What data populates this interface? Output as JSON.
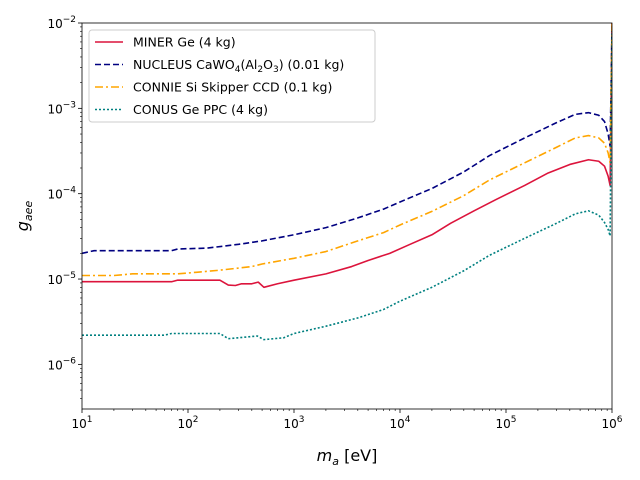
{
  "chart_data": {
    "type": "line",
    "title": "",
    "xlabel_main": "m",
    "xlabel_sub": "a",
    "xlabel_unit": " [eV]",
    "ylabel_main": "g",
    "ylabel_sub": "aee",
    "xscale": "log",
    "yscale": "log",
    "xlim": [
      10,
      1000000
    ],
    "ylim": [
      3e-07,
      0.01
    ],
    "grid": false,
    "legend_position": "upper-left",
    "x_ticks": [
      {
        "value": 10,
        "base": "10",
        "exp": "1"
      },
      {
        "value": 100,
        "base": "10",
        "exp": "2"
      },
      {
        "value": 1000,
        "base": "10",
        "exp": "3"
      },
      {
        "value": 10000,
        "base": "10",
        "exp": "4"
      },
      {
        "value": 100000,
        "base": "10",
        "exp": "5"
      },
      {
        "value": 1000000,
        "base": "10",
        "exp": "6"
      }
    ],
    "y_ticks": [
      {
        "value": 1e-06,
        "base": "10",
        "exp": "−6"
      },
      {
        "value": 1e-05,
        "base": "10",
        "exp": "−5"
      },
      {
        "value": 0.0001,
        "base": "10",
        "exp": "−4"
      },
      {
        "value": 0.001,
        "base": "10",
        "exp": "−3"
      },
      {
        "value": 0.01,
        "base": "10",
        "exp": "−2"
      }
    ],
    "series": [
      {
        "name": "MINER Ge (4 kg)",
        "legend_parts": [
          {
            "t": "MINER Ge (4 kg)"
          }
        ],
        "color": "#dc143c",
        "dash": "solid",
        "points": [
          [
            10,
            9.3e-06
          ],
          [
            70,
            9.3e-06
          ],
          [
            80,
            9.7e-06
          ],
          [
            200,
            9.7e-06
          ],
          [
            240,
            8.5e-06
          ],
          [
            280,
            8.4e-06
          ],
          [
            320,
            8.8e-06
          ],
          [
            400,
            8.8e-06
          ],
          [
            460,
            9.2e-06
          ],
          [
            520,
            8e-06
          ],
          [
            700,
            8.8e-06
          ],
          [
            1000,
            9.7e-06
          ],
          [
            2000,
            1.15e-05
          ],
          [
            3500,
            1.4e-05
          ],
          [
            5000,
            1.65e-05
          ],
          [
            8000,
            2e-05
          ],
          [
            12000,
            2.5e-05
          ],
          [
            20000,
            3.3e-05
          ],
          [
            30000,
            4.5e-05
          ],
          [
            50000,
            6.3e-05
          ],
          [
            80000,
            8.5e-05
          ],
          [
            150000,
            0.000125
          ],
          [
            250000,
            0.000175
          ],
          [
            400000,
            0.00022
          ],
          [
            600000,
            0.00025
          ],
          [
            750000,
            0.00024
          ],
          [
            850000,
            0.00021
          ],
          [
            920000,
            0.00016
          ],
          [
            960000,
            0.000125
          ],
          [
            990000,
            0.003
          ],
          [
            1000000,
            0.01
          ]
        ]
      },
      {
        "name": "NUCLEUS CaWO4(Al2O3) (0.01 kg)",
        "legend_parts": [
          {
            "t": "NUCLEUS CaWO"
          },
          {
            "t": "4",
            "sub": true
          },
          {
            "t": "(Al"
          },
          {
            "t": "2",
            "sub": true
          },
          {
            "t": "O"
          },
          {
            "t": "3",
            "sub": true
          },
          {
            "t": ") (0.01 kg)"
          }
        ],
        "color": "#000080",
        "dash": "6 3",
        "points": [
          [
            10,
            2e-05
          ],
          [
            13,
            2.15e-05
          ],
          [
            70,
            2.15e-05
          ],
          [
            80,
            2.25e-05
          ],
          [
            150,
            2.3e-05
          ],
          [
            300,
            2.55e-05
          ],
          [
            500,
            2.8e-05
          ],
          [
            1000,
            3.3e-05
          ],
          [
            2000,
            4e-05
          ],
          [
            4000,
            5.2e-05
          ],
          [
            7000,
            6.6e-05
          ],
          [
            10000,
            8e-05
          ],
          [
            20000,
            0.000115
          ],
          [
            40000,
            0.00018
          ],
          [
            70000,
            0.00028
          ],
          [
            150000,
            0.00045
          ],
          [
            300000,
            0.00068
          ],
          [
            450000,
            0.00085
          ],
          [
            600000,
            0.00089
          ],
          [
            750000,
            0.00083
          ],
          [
            850000,
            0.0007
          ],
          [
            920000,
            0.0005
          ],
          [
            960000,
            0.00036
          ],
          [
            990000,
            0.004
          ],
          [
            1000000,
            0.01
          ]
        ]
      },
      {
        "name": "CONNIE Si Skipper CCD (0.1 kg)",
        "legend_parts": [
          {
            "t": "CONNIE Si Skipper CCD (0.1 kg)"
          }
        ],
        "color": "#ffa500",
        "dash": "8 3 2 3",
        "points": [
          [
            10,
            1.1e-05
          ],
          [
            20,
            1.1e-05
          ],
          [
            30,
            1.15e-05
          ],
          [
            80,
            1.15e-05
          ],
          [
            120,
            1.2e-05
          ],
          [
            200,
            1.27e-05
          ],
          [
            400,
            1.4e-05
          ],
          [
            500,
            1.5e-05
          ],
          [
            1000,
            1.75e-05
          ],
          [
            2000,
            2.1e-05
          ],
          [
            4000,
            2.8e-05
          ],
          [
            7000,
            3.5e-05
          ],
          [
            10000,
            4.3e-05
          ],
          [
            20000,
            6.2e-05
          ],
          [
            40000,
            9.5e-05
          ],
          [
            70000,
            0.000145
          ],
          [
            150000,
            0.00023
          ],
          [
            300000,
            0.00035
          ],
          [
            450000,
            0.00045
          ],
          [
            600000,
            0.00048
          ],
          [
            750000,
            0.00045
          ],
          [
            850000,
            0.00039
          ],
          [
            920000,
            0.0003
          ],
          [
            960000,
            0.00023
          ],
          [
            990000,
            0.0035
          ],
          [
            1000000,
            0.01
          ]
        ]
      },
      {
        "name": "CONUS Ge PPC (4 kg)",
        "legend_parts": [
          {
            "t": "CONUS Ge PPC (4 kg)"
          }
        ],
        "color": "#008080",
        "dash": "2 2",
        "points": [
          [
            10,
            2.2e-06
          ],
          [
            60,
            2.2e-06
          ],
          [
            70,
            2.3e-06
          ],
          [
            200,
            2.3e-06
          ],
          [
            240,
            2e-06
          ],
          [
            300,
            2.05e-06
          ],
          [
            450,
            2.15e-06
          ],
          [
            520,
            1.95e-06
          ],
          [
            800,
            2.05e-06
          ],
          [
            1000,
            2.3e-06
          ],
          [
            2000,
            2.8e-06
          ],
          [
            4000,
            3.5e-06
          ],
          [
            7000,
            4.4e-06
          ],
          [
            10000,
            5.5e-06
          ],
          [
            20000,
            8e-06
          ],
          [
            40000,
            1.25e-05
          ],
          [
            70000,
            1.9e-05
          ],
          [
            150000,
            3e-05
          ],
          [
            300000,
            4.5e-05
          ],
          [
            450000,
            5.8e-05
          ],
          [
            600000,
            6.3e-05
          ],
          [
            750000,
            5.6e-05
          ],
          [
            850000,
            4.6e-05
          ],
          [
            920000,
            3.8e-05
          ],
          [
            960000,
            3.2e-05
          ],
          [
            990000,
            0.0025
          ],
          [
            1000000,
            0.008
          ]
        ]
      }
    ]
  }
}
